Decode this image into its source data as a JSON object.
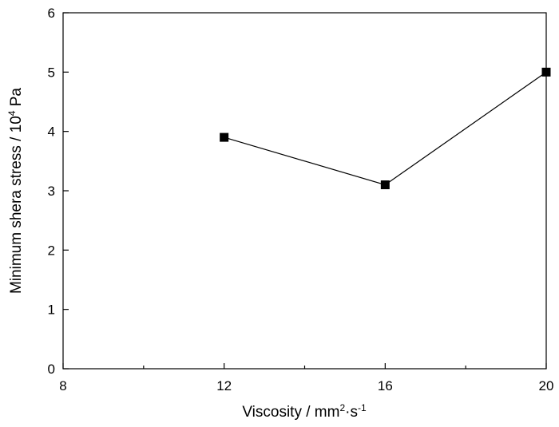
{
  "chart_data": {
    "type": "line",
    "xlabel_parts": [
      "Viscosity / mm",
      "2",
      "·s",
      "-1"
    ],
    "ylabel_parts": [
      "Minimum shera stress / 10",
      "4",
      " Pa"
    ],
    "xlim": [
      8,
      20
    ],
    "ylim": [
      0,
      6
    ],
    "x_ticks": [
      8,
      12,
      16,
      20
    ],
    "x_minor_ticks": [
      10,
      14,
      18
    ],
    "y_ticks": [
      0,
      1,
      2,
      3,
      4,
      5,
      6
    ],
    "grid": false,
    "marker": "square",
    "series": [
      {
        "x": [
          12,
          16,
          20
        ],
        "y": [
          3.9,
          3.1,
          5.0
        ]
      }
    ]
  }
}
